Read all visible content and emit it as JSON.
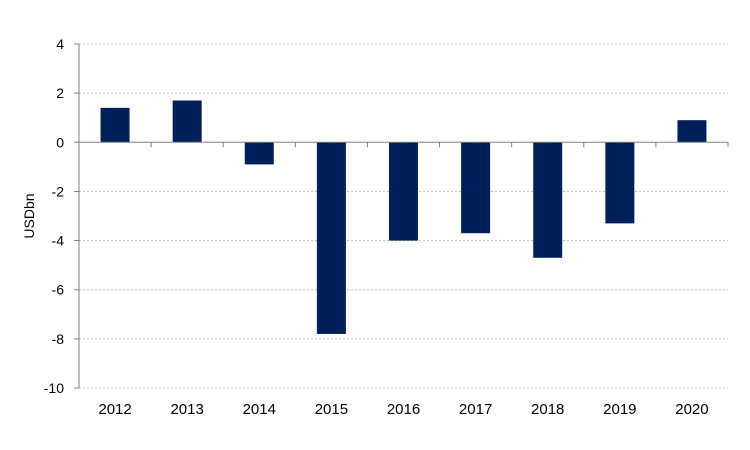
{
  "chart_data": {
    "type": "bar",
    "title": "",
    "xlabel": "",
    "ylabel": "USDbn",
    "categories": [
      "2012",
      "2013",
      "2014",
      "2015",
      "2016",
      "2017",
      "2018",
      "2019",
      "2020"
    ],
    "series": [
      {
        "values": [
          1.4,
          1.7,
          -0.9,
          -7.8,
          -4.0,
          -3.7,
          -4.7,
          -3.3,
          0.9
        ]
      }
    ],
    "ylim": [
      -10,
      4
    ],
    "yticks": [
      4,
      2,
      0,
      -2,
      -4,
      -6,
      -8,
      -10
    ],
    "grid": true,
    "legend": "none",
    "colors": {
      "bar": "#00205B",
      "grid": "#BFBFBF",
      "axis": "#808080"
    }
  }
}
